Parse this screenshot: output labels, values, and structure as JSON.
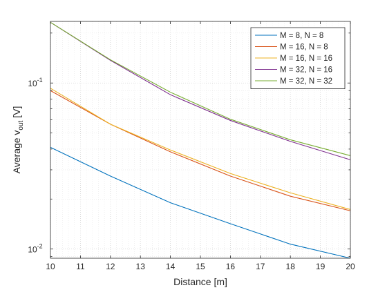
{
  "chart_data": {
    "type": "line",
    "xlabel": "Distance [m]",
    "ylabel": "Average v",
    "ylabel_subscript": "out",
    "ylabel_unit": " [V]",
    "xlim": [
      10,
      20
    ],
    "ylim": [
      0.0088,
      0.235
    ],
    "y_scale": "log",
    "grid": true,
    "x_ticks": [
      10,
      11,
      12,
      13,
      14,
      15,
      16,
      17,
      18,
      19,
      20
    ],
    "y_ticks": [
      {
        "value": 0.01,
        "base": "10",
        "exp": "-2"
      },
      {
        "value": 0.1,
        "base": "10",
        "exp": "-1"
      }
    ],
    "legend_position": "top-right",
    "x": [
      10,
      12,
      14,
      16,
      18,
      20
    ],
    "series": [
      {
        "name": "M = 8, N = 8",
        "color": "#0072BD",
        "values": [
          0.041,
          0.0275,
          0.019,
          0.0142,
          0.0107,
          0.0088
        ]
      },
      {
        "name": "M = 16, N = 8",
        "color": "#D95319",
        "values": [
          0.09,
          0.0565,
          0.0385,
          0.0275,
          0.0208,
          0.017
        ]
      },
      {
        "name": "M = 16, N = 16",
        "color": "#EDB120",
        "values": [
          0.093,
          0.0565,
          0.0395,
          0.0285,
          0.0218,
          0.0173
        ]
      },
      {
        "name": "M = 32, N = 16",
        "color": "#7E2F8E",
        "values": [
          0.232,
          0.137,
          0.085,
          0.0595,
          0.0445,
          0.0345
        ]
      },
      {
        "name": "M = 32, N = 32",
        "color": "#77AC30",
        "values": [
          0.232,
          0.138,
          0.088,
          0.0605,
          0.0455,
          0.0365
        ]
      }
    ]
  }
}
